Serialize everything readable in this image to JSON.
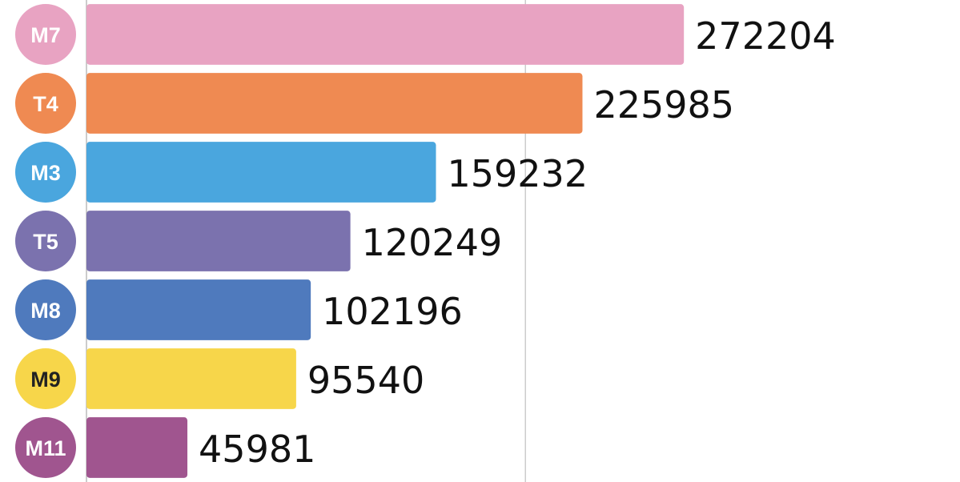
{
  "chart_data": {
    "type": "barh",
    "categories": [
      "M7",
      "T4",
      "M3",
      "T5",
      "M8",
      "M9",
      "M11"
    ],
    "values": [
      272204,
      225985,
      159232,
      120249,
      102196,
      95540,
      45981
    ],
    "colors": [
      "#e8a3c2",
      "#ef8a52",
      "#4aa6de",
      "#7b72ae",
      "#4f7abd",
      "#f7d64a",
      "#a0558f"
    ],
    "xlim": [
      0,
      398000
    ],
    "xticks": [
      0,
      200000
    ],
    "grid": true
  }
}
